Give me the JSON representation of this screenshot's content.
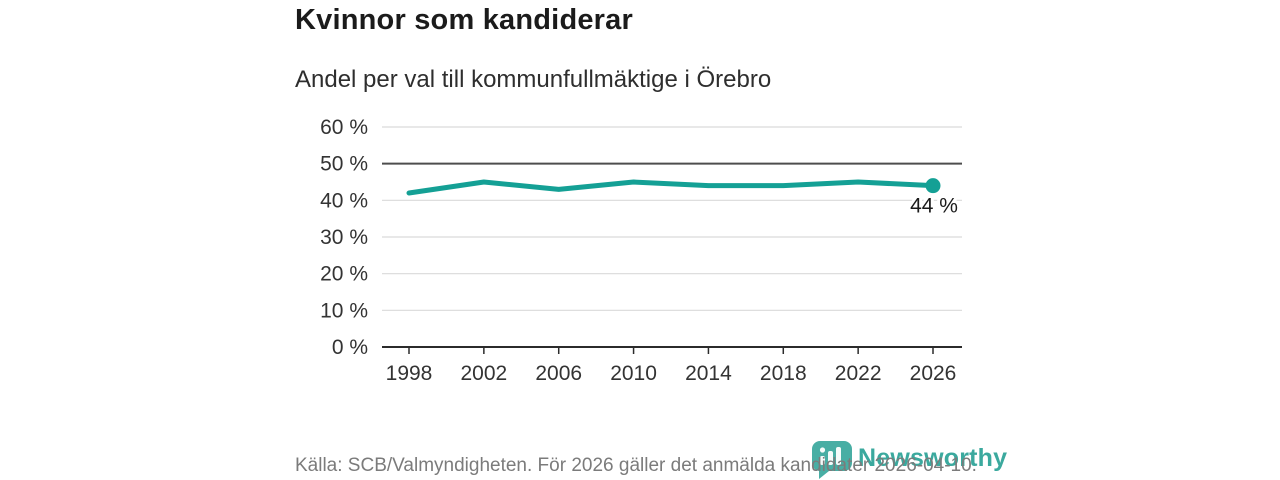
{
  "header": {
    "title": "Kvinnor som kandiderar",
    "subtitle": "Andel per val till kommunfullmäktige i Örebro"
  },
  "chart_data": {
    "type": "line",
    "title": "Kvinnor som kandiderar",
    "subtitle": "Andel per val till kommunfullmäktige i Örebro",
    "x": [
      "1998",
      "2002",
      "2006",
      "2010",
      "2014",
      "2018",
      "2022",
      "2026"
    ],
    "values": [
      42,
      45,
      43,
      45,
      44,
      44,
      45,
      44
    ],
    "unit": "%",
    "xlabel": "",
    "ylabel": "",
    "ylim": [
      0,
      60
    ],
    "yticks": [
      0,
      10,
      20,
      30,
      40,
      50,
      60
    ],
    "ytick_labels": [
      "0 %",
      "10 %",
      "20 %",
      "30 %",
      "40 %",
      "50 %",
      "60 %"
    ],
    "reference_line": 50,
    "end_label": "44 %",
    "line_color": "#14a095",
    "grid": true,
    "legend": "none"
  },
  "footer": {
    "source": "Källa: SCB/Valmyndigheten. För 2026 gäller det anmälda kandidater 2026-04-10.",
    "logo_text": "Newsworthy"
  },
  "colors": {
    "accent": "#14a095",
    "logo_bubble": "#48AEA4",
    "wordmark": "#3BA99E",
    "grid": "#d9d9d9",
    "reference": "#4d4d4d",
    "axis": "#2b2b2b",
    "title_text": "#1b1b1b",
    "muted_text": "#7b7b7b"
  }
}
